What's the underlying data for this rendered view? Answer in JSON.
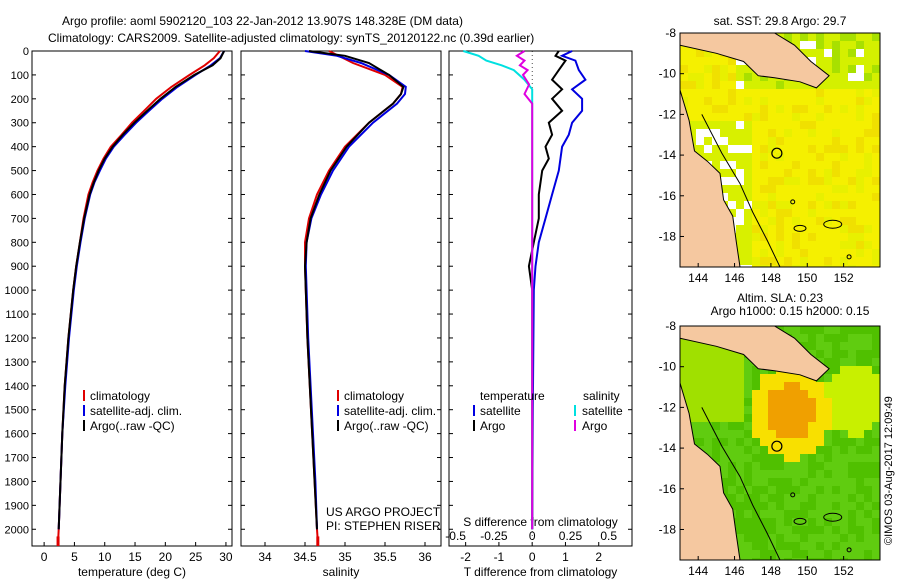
{
  "header": {
    "line1": "Argo profile: aoml 5902120_103 22-Jan-2012 13.907S 148.328E (DM data)",
    "line2": "Climatology: CARS2009. Satellite-adjusted climatology: synTS_20120122.nc (0.39d earlier)"
  },
  "side_text": "©IMOS 03-Aug-2017 12:09:49",
  "colors": {
    "climatology": "#e00000",
    "satellite": "#0000e0",
    "argo": "#000000",
    "argo_s": "#e000e0",
    "sat_s": "#00e0e0",
    "land": "#f5c8a0"
  },
  "chart_data": [
    {
      "id": "temperature",
      "type": "line",
      "xlabel": "temperature (deg C)",
      "ylabel": "",
      "xlim": [
        -2,
        31
      ],
      "ylim": [
        2070,
        0
      ],
      "xticks": [
        0,
        5,
        10,
        15,
        20,
        25,
        30
      ],
      "yticks": [
        0,
        100,
        200,
        300,
        400,
        500,
        600,
        700,
        800,
        900,
        1000,
        1100,
        1200,
        1300,
        1400,
        1500,
        1600,
        1700,
        1800,
        1900,
        2000
      ],
      "legend": [
        "climatology",
        "satellite-adj. clim.",
        "Argo(..raw -QC)"
      ],
      "series": [
        {
          "name": "climatology",
          "depth": [
            0,
            30,
            60,
            100,
            150,
            200,
            250,
            300,
            350,
            400,
            450,
            500,
            550,
            600,
            700,
            800,
            900,
            1000,
            1200,
            1400,
            1600,
            1800,
            2000,
            2050
          ],
          "values": [
            29.0,
            28.0,
            26.5,
            24.0,
            21.0,
            18.5,
            16.5,
            14.5,
            12.8,
            11.0,
            9.8,
            8.8,
            8.0,
            7.3,
            6.5,
            5.9,
            5.3,
            4.8,
            4.0,
            3.4,
            3.0,
            2.7,
            2.4,
            2.3
          ]
        },
        {
          "name": "satellite-adj. clim.",
          "depth": [
            0,
            30,
            60,
            100,
            150,
            200,
            250,
            300,
            350,
            400,
            450,
            500,
            550,
            600,
            700,
            800,
            900,
            1000,
            1200,
            1400,
            1600,
            1800,
            2000
          ],
          "values": [
            29.7,
            29.0,
            27.5,
            25.0,
            22.0,
            19.5,
            17.3,
            15.2,
            13.3,
            11.5,
            10.2,
            9.2,
            8.3,
            7.6,
            6.7,
            6.0,
            5.4,
            4.9,
            4.1,
            3.5,
            3.0,
            2.7,
            2.4
          ]
        },
        {
          "name": "Argo(..raw -QC)",
          "depth": [
            0,
            30,
            60,
            100,
            150,
            200,
            250,
            300,
            350,
            400,
            450,
            500,
            550,
            600,
            700,
            800,
            900,
            1000,
            1200,
            1400,
            1600,
            1800,
            2000
          ],
          "values": [
            29.7,
            29.1,
            27.8,
            24.8,
            21.7,
            19.2,
            17.0,
            14.9,
            13.0,
            11.3,
            10.0,
            9.0,
            8.2,
            7.5,
            6.6,
            5.9,
            5.3,
            4.8,
            4.0,
            3.4,
            3.0,
            2.7,
            2.4
          ]
        }
      ]
    },
    {
      "id": "salinity",
      "type": "line",
      "xlabel": "salinity",
      "xlim": [
        33.7,
        36.2
      ],
      "ylim": [
        2070,
        0
      ],
      "xticks": [
        34,
        34.5,
        35,
        35.5,
        36
      ],
      "legend": [
        "climatology",
        "satellite-adj. clim.",
        "Argo(..raw -QC)"
      ],
      "annotation": [
        "US ARGO PROJECT",
        "PI: STEPHEN RISER"
      ],
      "series": [
        {
          "name": "climatology",
          "depth": [
            0,
            50,
            100,
            150,
            180,
            220,
            300,
            400,
            500,
            600,
            700,
            800,
            900,
            1000,
            1200,
            1400,
            1600,
            1800,
            2000,
            2050
          ],
          "values": [
            34.8,
            35.1,
            35.5,
            35.72,
            35.7,
            35.6,
            35.3,
            35.0,
            34.8,
            34.65,
            34.55,
            34.5,
            34.5,
            34.51,
            34.53,
            34.56,
            34.59,
            34.62,
            34.65,
            34.66
          ]
        },
        {
          "name": "satellite-adj. clim.",
          "depth": [
            0,
            20,
            50,
            100,
            150,
            180,
            220,
            300,
            400,
            500,
            600,
            700,
            800,
            900,
            1000,
            1200,
            1400,
            1600,
            1800,
            2000
          ],
          "values": [
            34.5,
            34.9,
            35.2,
            35.55,
            35.76,
            35.75,
            35.65,
            35.35,
            35.05,
            34.85,
            34.7,
            34.58,
            34.52,
            34.51,
            34.52,
            34.54,
            34.57,
            34.6,
            34.63,
            34.65
          ]
        },
        {
          "name": "Argo(..raw -QC)",
          "depth": [
            0,
            20,
            50,
            100,
            150,
            180,
            220,
            300,
            400,
            500,
            600,
            700,
            800,
            900,
            1000,
            1200,
            1400,
            1600,
            1800,
            2000
          ],
          "values": [
            34.55,
            35.0,
            35.3,
            35.55,
            35.73,
            35.7,
            35.6,
            35.3,
            35.02,
            34.82,
            34.68,
            34.57,
            34.52,
            34.5,
            34.51,
            34.53,
            34.56,
            34.59,
            34.62,
            34.65
          ]
        }
      ]
    },
    {
      "id": "difference",
      "type": "line",
      "xlabel": "T difference from climatology",
      "xlabel_top": "S difference from climatology",
      "xlim": [
        -2.5,
        3
      ],
      "ylim": [
        2070,
        0
      ],
      "xticks": [
        -2,
        -1,
        0,
        1,
        2
      ],
      "xticks_top": [
        -0.5,
        -0.25,
        0,
        0.25,
        0.5
      ],
      "xtick_labels_top": [
        "-0.5",
        "-0.25",
        "0",
        "0.25",
        "0.5"
      ],
      "legend_temperature": {
        "title": "temperature",
        "items": [
          "satellite",
          "Argo"
        ]
      },
      "legend_salinity": {
        "title": "salinity",
        "items": [
          "satellite",
          "Argo"
        ]
      },
      "series": [
        {
          "name": "T satellite",
          "depth": [
            0,
            20,
            40,
            80,
            120,
            160,
            200,
            250,
            300,
            350,
            400,
            500,
            600,
            700,
            800,
            900,
            1000,
            1500,
            2000
          ],
          "values": [
            1.2,
            0.9,
            1.3,
            1.4,
            1.6,
            1.2,
            1.5,
            1.5,
            1.2,
            1.1,
            0.9,
            0.8,
            0.6,
            0.4,
            0.2,
            0.1,
            0.05,
            0.02,
            0.0
          ]
        },
        {
          "name": "T Argo",
          "depth": [
            0,
            20,
            40,
            80,
            120,
            160,
            200,
            250,
            300,
            350,
            400,
            450,
            500,
            600,
            700,
            800,
            900,
            1000,
            1500,
            2000
          ],
          "values": [
            0.8,
            0.7,
            1.0,
            0.8,
            0.6,
            0.9,
            0.6,
            0.9,
            0.5,
            0.6,
            0.4,
            0.5,
            0.3,
            0.2,
            0.2,
            0.05,
            -0.1,
            0.0,
            0.0,
            0.0
          ]
        },
        {
          "name": "S satellite",
          "depth": [
            0,
            20,
            40,
            60,
            80,
            120,
            160,
            200,
            300,
            500,
            1000,
            2000
          ],
          "values": [
            -0.45,
            -0.35,
            -0.3,
            -0.2,
            -0.12,
            -0.05,
            0.0,
            0.0,
            0.0,
            0.0,
            0.0,
            0.0
          ]
        },
        {
          "name": "S Argo",
          "depth": [
            0,
            20,
            40,
            60,
            80,
            100,
            140,
            180,
            220,
            300,
            500,
            1000,
            2000
          ],
          "values": [
            -0.05,
            -0.1,
            -0.05,
            -0.08,
            -0.03,
            -0.06,
            -0.02,
            -0.05,
            0.0,
            0.0,
            0.0,
            0.0,
            0.0
          ]
        }
      ]
    },
    {
      "id": "sst_map",
      "type": "heatmap",
      "title": "sat. SST: 29.8  Argo: 29.7",
      "xlim": [
        143,
        154
      ],
      "ylim": [
        -19.5,
        -8
      ],
      "xticks": [
        144,
        146,
        148,
        150,
        152
      ],
      "yticks": [
        -8,
        -10,
        -12,
        -14,
        -16,
        -18
      ],
      "marker": {
        "lon": 148.328,
        "lat": -13.907
      }
    },
    {
      "id": "sla_map",
      "type": "heatmap",
      "title": "Altim. SLA: 0.23",
      "subtitle": "Argo h1000: 0.15 h2000: 0.15",
      "xlim": [
        143,
        154
      ],
      "ylim": [
        -19.5,
        -8
      ],
      "xticks": [
        144,
        146,
        148,
        150,
        152
      ],
      "yticks": [
        -8,
        -10,
        -12,
        -14,
        -16,
        -18
      ],
      "marker": {
        "lon": 148.328,
        "lat": -13.907
      }
    }
  ]
}
